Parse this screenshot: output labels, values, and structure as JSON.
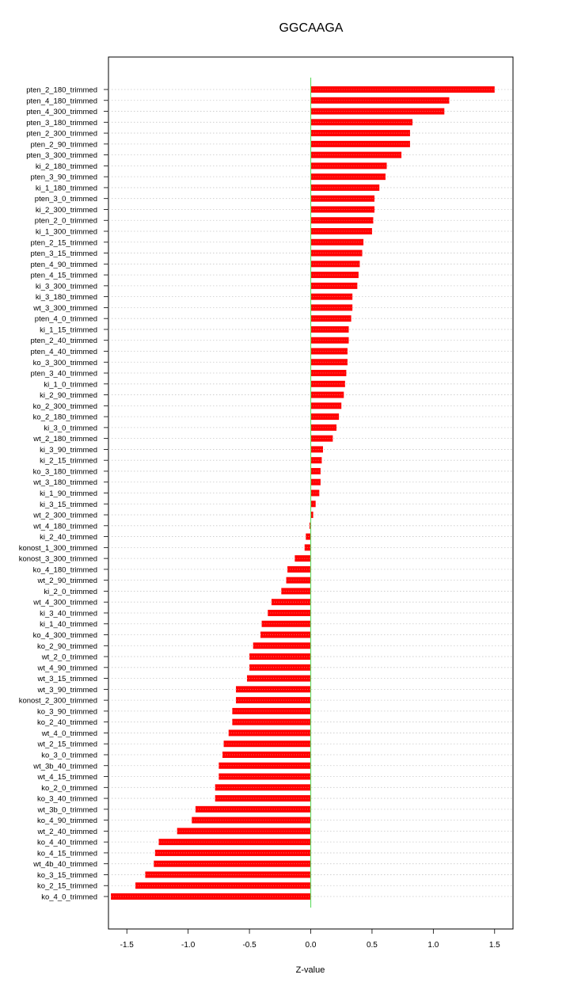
{
  "chart_data": {
    "type": "bar",
    "orientation": "horizontal",
    "title": "GGCAAGA",
    "xlabel": "Z-value",
    "ylabel": "",
    "xlim": [
      -1.65,
      1.65
    ],
    "xticks": [
      -1.5,
      -1.0,
      -0.5,
      0.0,
      0.5,
      1.0,
      1.5
    ],
    "xtick_labels": [
      "-1.5",
      "-1.0",
      "-0.5",
      "0.0",
      "0.5",
      "1.0",
      "1.5"
    ],
    "grid": "horizontal dotted",
    "bar_color": "#ff0000",
    "zero_line_color": "#66dd66",
    "categories": [
      "pten_2_180_trimmed",
      "pten_4_180_trimmed",
      "pten_4_300_trimmed",
      "pten_3_180_trimmed",
      "pten_2_300_trimmed",
      "pten_2_90_trimmed",
      "pten_3_300_trimmed",
      "ki_2_180_trimmed",
      "pten_3_90_trimmed",
      "ki_1_180_trimmed",
      "pten_3_0_trimmed",
      "ki_2_300_trimmed",
      "pten_2_0_trimmed",
      "ki_1_300_trimmed",
      "pten_2_15_trimmed",
      "pten_3_15_trimmed",
      "pten_4_90_trimmed",
      "pten_4_15_trimmed",
      "ki_3_300_trimmed",
      "ki_3_180_trimmed",
      "wt_3_300_trimmed",
      "pten_4_0_trimmed",
      "ki_1_15_trimmed",
      "pten_2_40_trimmed",
      "pten_4_40_trimmed",
      "ko_3_300_trimmed",
      "pten_3_40_trimmed",
      "ki_1_0_trimmed",
      "ki_2_90_trimmed",
      "ko_2_300_trimmed",
      "ko_2_180_trimmed",
      "ki_3_0_trimmed",
      "wt_2_180_trimmed",
      "ki_3_90_trimmed",
      "ki_2_15_trimmed",
      "ko_3_180_trimmed",
      "wt_3_180_trimmed",
      "ki_1_90_trimmed",
      "ki_3_15_trimmed",
      "wt_2_300_trimmed",
      "wt_4_180_trimmed",
      "ki_2_40_trimmed",
      "konost_1_300_trimmed",
      "konost_3_300_trimmed",
      "ko_4_180_trimmed",
      "wt_2_90_trimmed",
      "ki_2_0_trimmed",
      "wt_4_300_trimmed",
      "ki_3_40_trimmed",
      "ki_1_40_trimmed",
      "ko_4_300_trimmed",
      "ko_2_90_trimmed",
      "wt_2_0_trimmed",
      "wt_4_90_trimmed",
      "wt_3_15_trimmed",
      "wt_3_90_trimmed",
      "konost_2_300_trimmed",
      "ko_3_90_trimmed",
      "ko_2_40_trimmed",
      "wt_4_0_trimmed",
      "wt_2_15_trimmed",
      "ko_3_0_trimmed",
      "wt_3b_40_trimmed",
      "wt_4_15_trimmed",
      "ko_2_0_trimmed",
      "ko_3_40_trimmed",
      "wt_3b_0_trimmed",
      "ko_4_90_trimmed",
      "wt_2_40_trimmed",
      "ko_4_40_trimmed",
      "ko_4_15_trimmed",
      "wt_4b_40_trimmed",
      "ko_3_15_trimmed",
      "ko_2_15_trimmed",
      "ko_4_0_trimmed"
    ],
    "values": [
      1.5,
      1.13,
      1.09,
      0.83,
      0.81,
      0.81,
      0.74,
      0.62,
      0.61,
      0.56,
      0.52,
      0.52,
      0.51,
      0.5,
      0.43,
      0.42,
      0.4,
      0.39,
      0.38,
      0.34,
      0.34,
      0.33,
      0.31,
      0.31,
      0.3,
      0.3,
      0.29,
      0.28,
      0.27,
      0.25,
      0.23,
      0.21,
      0.18,
      0.1,
      0.09,
      0.08,
      0.08,
      0.07,
      0.04,
      0.02,
      -0.01,
      -0.04,
      -0.05,
      -0.13,
      -0.19,
      -0.2,
      -0.24,
      -0.32,
      -0.35,
      -0.4,
      -0.41,
      -0.47,
      -0.5,
      -0.5,
      -0.52,
      -0.61,
      -0.61,
      -0.64,
      -0.64,
      -0.67,
      -0.71,
      -0.72,
      -0.75,
      -0.75,
      -0.78,
      -0.78,
      -0.94,
      -0.97,
      -1.09,
      -1.24,
      -1.27,
      -1.28,
      -1.35,
      -1.43,
      -1.63
    ]
  }
}
